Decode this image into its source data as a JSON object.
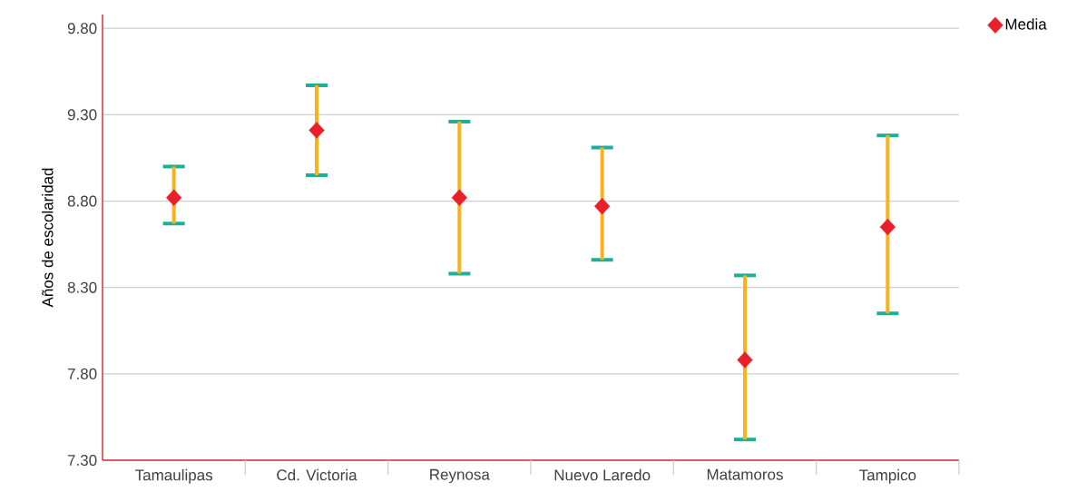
{
  "chart_data": {
    "type": "scatter",
    "ylabel": "Años de escolaridad",
    "categories": [
      "Tamaulipas",
      "Cd. Victoria",
      "Reynosa",
      "Nuevo Laredo",
      "Matamoros",
      "Tampico"
    ],
    "series": [
      {
        "name": "Media",
        "color": "#e8202a",
        "values": [
          8.82,
          9.21,
          8.82,
          8.77,
          7.88,
          8.65
        ],
        "errors": [
          [
            8.67,
            9.0
          ],
          [
            8.95,
            9.47
          ],
          [
            8.38,
            9.26
          ],
          [
            8.46,
            9.11
          ],
          [
            7.42,
            8.37
          ],
          [
            8.15,
            9.18
          ]
        ]
      }
    ],
    "ylim": [
      7.3,
      9.88
    ],
    "yticks": [
      {
        "value": 7.3,
        "label": "7.30"
      },
      {
        "value": 7.8,
        "label": "7.80"
      },
      {
        "value": 8.3,
        "label": "8.30"
      },
      {
        "value": 8.8,
        "label": "8.80"
      },
      {
        "value": 9.3,
        "label": "9.30"
      },
      {
        "value": 9.8,
        "label": "9.80"
      }
    ],
    "grid": "y",
    "legend": "top right",
    "marker": "diamond"
  }
}
